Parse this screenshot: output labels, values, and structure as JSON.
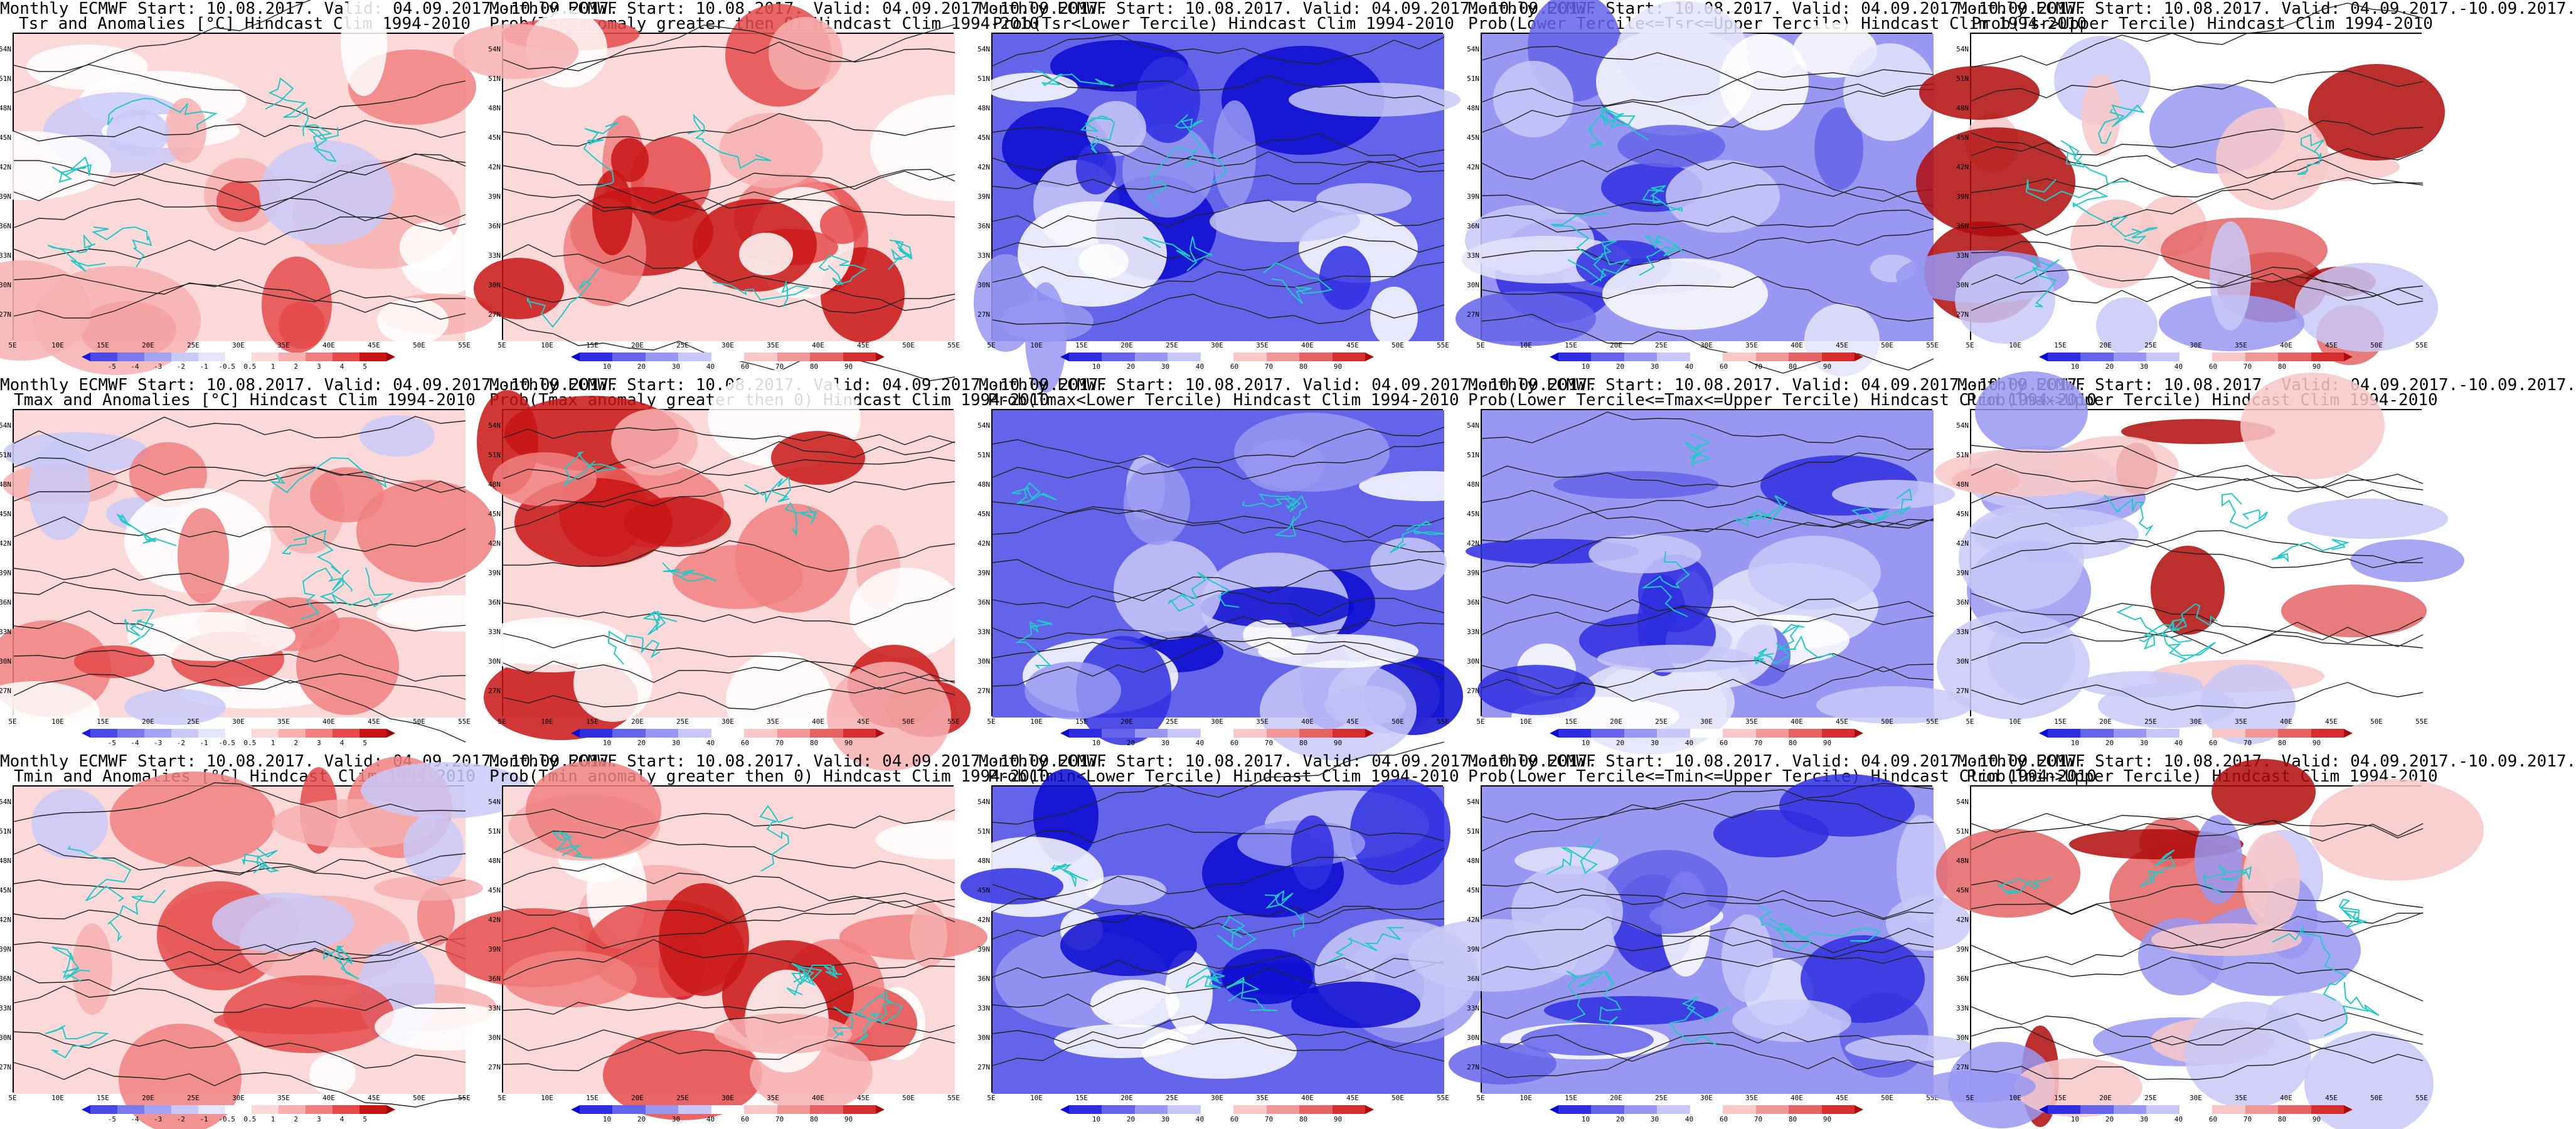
{
  "rows": [
    {
      "variable": "Tsr",
      "panels": [
        {
          "line1": "Monthly ECMWF Start: 10.08.2017. Valid: 04.09.2017.-10.09.2017.",
          "line2": "Tsr and Anomalies [°C] Hindcast Clim 1994-2010",
          "type": "anom"
        },
        {
          "line1": "Monthly ECMWF Start: 10.08.2017. Valid: 04.09.2017.-10.09.2017.",
          "line2": "Prob(Tsr anomaly greater then 0) Hindcast Clim 1994-2010",
          "type": "gt0"
        },
        {
          "line1": "Monthly ECMWF Start: 10.08.2017. Valid: 04.09.2017.-10.09.2017.",
          "line2": "Prob(Tsr<Lower Tercile) Hindcast Clim 1994-2010",
          "type": "lower"
        },
        {
          "line1": "Monthly ECMWF Start: 10.08.2017. Valid: 04.09.2017.-10.09.2017.",
          "line2": "Prob(Lower Tercile<=Tsr<=Upper Tercile) Hindcast Clim 1994-2010",
          "type": "mid"
        },
        {
          "line1": "Monthly ECMWF Start: 10.08.2017. Valid: 04.09.2017.-10.09.2017.",
          "line2": "Prob(Tsr>Upper Tercile) Hindcast Clim 1994-2010",
          "type": "upper"
        }
      ]
    },
    {
      "variable": "Tmax",
      "panels": [
        {
          "line1": "Monthly ECMWF Start: 10.08.2017. Valid: 04.09.2017.-10.09.2017.",
          "line2": "Tmax and Anomalies [°C] Hindcast Clim 1994-2010",
          "type": "anom"
        },
        {
          "line1": "Monthly ECMWF Start: 10.08.2017. Valid: 04.09.2017.-10.09.2017.",
          "line2": "Prob(Tmax anomaly greater then 0) Hindcast Clim 1994-2010",
          "type": "gt0"
        },
        {
          "line1": "Monthly ECMWF Start: 10.08.2017. Valid: 04.09.2017.-10.09.2017.",
          "line2": "Prob(Tmax<Lower Tercile) Hindcast Clim 1994-2010",
          "type": "lower"
        },
        {
          "line1": "Monthly ECMWF Start: 10.08.2017. Valid: 04.09.2017.-10.09.2017.",
          "line2": "Prob(Lower Tercile<=Tmax<=Upper Tercile) Hindcast Clim 1994-2010",
          "type": "mid"
        },
        {
          "line1": "Monthly ECMWF Start: 10.08.2017. Valid: 04.09.2017.-10.09.2017.",
          "line2": "Prob(Tmax>Upper Tercile) Hindcast Clim 1994-2010",
          "type": "upper"
        }
      ]
    },
    {
      "variable": "Tmin",
      "panels": [
        {
          "line1": "Monthly ECMWF Start: 10.08.2017. Valid: 04.09.2017.-10.09.2017.",
          "line2": "Tmin and Anomalies [°C] Hindcast Clim 1994-2010",
          "type": "anom"
        },
        {
          "line1": "Monthly ECMWF Start: 10.08.2017. Valid: 04.09.2017.-10.09.2017.",
          "line2": "Prob(Tmin anomaly greater then 0) Hindcast Clim 1994-2010",
          "type": "gt0"
        },
        {
          "line1": "Monthly ECMWF Start: 10.08.2017. Valid: 04.09.2017.-10.09.2017.",
          "line2": "Prob(Tmin<Lower Tercile) Hindcast Clim 1994-2010",
          "type": "lower"
        },
        {
          "line1": "Monthly ECMWF Start: 10.08.2017. Valid: 04.09.2017.-10.09.2017.",
          "line2": "Prob(Lower Tercile<=Tmin<=Upper Tercile) Hindcast Clim 1994-2010",
          "type": "mid"
        },
        {
          "line1": "Monthly ECMWF Start: 10.08.2017. Valid: 04.09.2017.-10.09.2017.",
          "line2": "Prob(Tmin>Upper Tercile) Hindcast Clim 1994-2010",
          "type": "upper"
        }
      ]
    }
  ],
  "lat_labels": [
    "54N",
    "51N",
    "48N",
    "45N",
    "42N",
    "39N",
    "36N",
    "33N",
    "30N",
    "27N"
  ],
  "lon_labels": [
    "5E",
    "10E",
    "15E",
    "20E",
    "25E",
    "30E",
    "35E",
    "40E",
    "45E",
    "50E",
    "55E"
  ],
  "colorbars": {
    "anom": {
      "ticks": [
        "-5",
        "-4",
        "-3",
        "-2",
        "-1",
        "-0.5",
        "0.5",
        "1",
        "2",
        "3",
        "4",
        "5"
      ],
      "colors": [
        "#1a1ad8",
        "#4a4ae6",
        "#7a7aee",
        "#a3a3f3",
        "#c9c9f8",
        "#e4e4fb",
        "#ffffff",
        "#fbd9d9",
        "#f7b0b0",
        "#f08080",
        "#e44a4a",
        "#c81414",
        "#a00000"
      ]
    },
    "prob": {
      "ticks": [
        "10",
        "20",
        "30",
        "40",
        "60",
        "70",
        "80",
        "90"
      ],
      "colors": [
        "#0a0ad0",
        "#2e2ee0",
        "#6464ea",
        "#9898f2",
        "#c8c8f8",
        "#ffffff",
        "#f8c8c8",
        "#f09898",
        "#e46464",
        "#d42e2e",
        "#b00a0a"
      ]
    }
  }
}
